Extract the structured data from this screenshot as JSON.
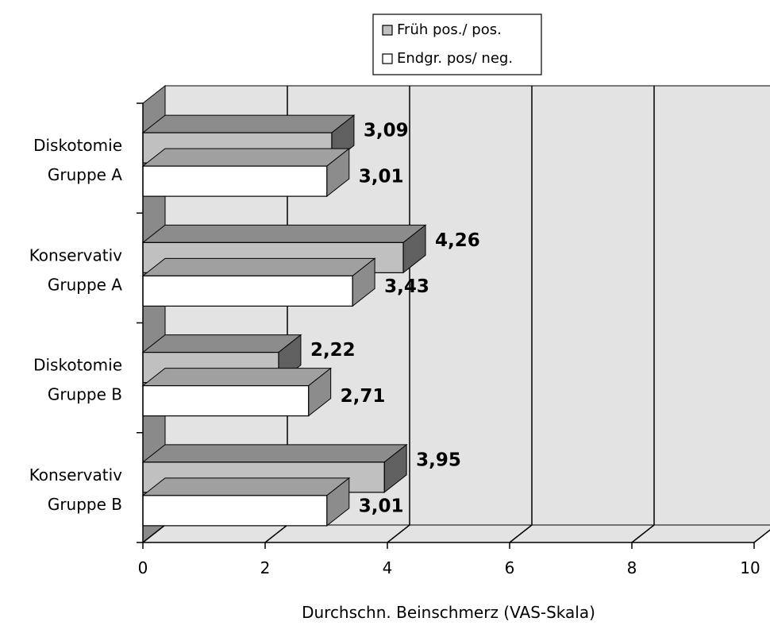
{
  "chart_data": {
    "type": "bar",
    "orientation": "horizontal",
    "three_d": true,
    "categories": [
      [
        "Diskotomie",
        "Gruppe A"
      ],
      [
        "Konservativ",
        "Gruppe A"
      ],
      [
        "Diskotomie",
        "Gruppe B"
      ],
      [
        "Konservativ",
        "Gruppe B"
      ]
    ],
    "series": [
      {
        "name": "Früh pos./ pos.",
        "color": "#c0c0c0",
        "values": [
          3.09,
          4.26,
          2.22,
          3.95
        ],
        "labels": [
          "3,09",
          "4,26",
          "2,22",
          "3,95"
        ]
      },
      {
        "name": "Endgr. pos/ neg.",
        "color": "#ffffff",
        "values": [
          3.01,
          3.43,
          2.71,
          3.01
        ],
        "labels": [
          "3,01",
          "3,43",
          "2,71",
          "3,01"
        ]
      }
    ],
    "xlim": [
      0,
      10
    ],
    "xticks": [
      "0",
      "2",
      "4",
      "6",
      "8",
      "10"
    ],
    "xlabel": "Durchschn. Beinschmerz (VAS-Skala)",
    "ylabel": "",
    "grid": true,
    "legend_position": "top"
  }
}
